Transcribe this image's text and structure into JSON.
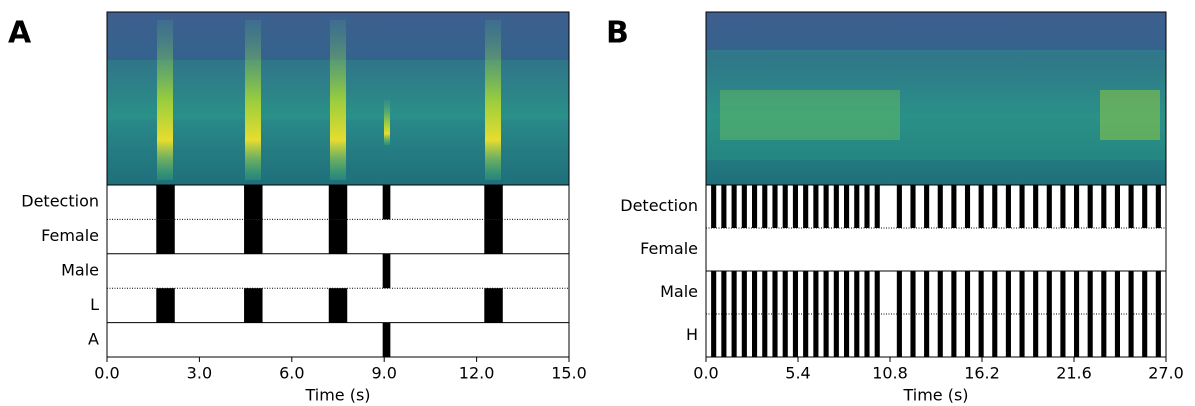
{
  "chart_data": [
    {
      "type": "event",
      "panel": "A",
      "xlabel": "Time (s)",
      "xlim": [
        0,
        15
      ],
      "xticks": [
        {
          "value": 0,
          "label": "0.0"
        },
        {
          "value": 3,
          "label": "3.0"
        },
        {
          "value": 6,
          "label": "6.0"
        },
        {
          "value": 9,
          "label": "9.0"
        },
        {
          "value": 12,
          "label": "12.0"
        },
        {
          "value": 15,
          "label": "15.0"
        }
      ],
      "color": "#000000",
      "tracks": [
        {
          "name": "Detection",
          "segments": [
            [
              1.6,
              2.2
            ],
            [
              4.45,
              5.05
            ],
            [
              7.2,
              7.8
            ],
            [
              8.95,
              9.2
            ],
            [
              12.25,
              12.85
            ]
          ]
        },
        {
          "name": "Female",
          "segments": [
            [
              1.6,
              2.2
            ],
            [
              4.45,
              5.05
            ],
            [
              7.2,
              7.8
            ],
            [
              12.25,
              12.85
            ]
          ]
        },
        {
          "name": "Male",
          "segments": [
            [
              8.95,
              9.2
            ]
          ]
        },
        {
          "name": "L",
          "segments": [
            [
              1.6,
              2.2
            ],
            [
              4.45,
              5.05
            ],
            [
              7.2,
              7.8
            ],
            [
              12.25,
              12.85
            ]
          ]
        },
        {
          "name": "A",
          "segments": [
            [
              8.95,
              9.2
            ]
          ]
        }
      ]
    },
    {
      "type": "event",
      "panel": "B",
      "xlabel": "Time (s)",
      "xlim": [
        0,
        27
      ],
      "xticks": [
        {
          "value": 0,
          "label": "0.0"
        },
        {
          "value": 5.4,
          "label": "5.4"
        },
        {
          "value": 10.8,
          "label": "10.8"
        },
        {
          "value": 16.2,
          "label": "16.2"
        },
        {
          "value": 21.6,
          "label": "21.6"
        },
        {
          "value": 27,
          "label": "27.0"
        }
      ],
      "color": "#000000",
      "tracks": [
        {
          "name": "Detection",
          "segments": [
            [
              0.3,
              0.6
            ],
            [
              0.9,
              1.2
            ],
            [
              1.5,
              1.8
            ],
            [
              2.1,
              2.4
            ],
            [
              2.7,
              3.0
            ],
            [
              3.3,
              3.6
            ],
            [
              3.9,
              4.2
            ],
            [
              4.5,
              4.8
            ],
            [
              5.1,
              5.4
            ],
            [
              5.7,
              6.0
            ],
            [
              6.3,
              6.6
            ],
            [
              6.9,
              7.2
            ],
            [
              7.5,
              7.8
            ],
            [
              8.1,
              8.4
            ],
            [
              8.7,
              9.0
            ],
            [
              9.3,
              9.6
            ],
            [
              9.9,
              10.2
            ],
            [
              11.2,
              11.5
            ],
            [
              12.0,
              12.3
            ],
            [
              12.8,
              13.1
            ],
            [
              13.6,
              13.9
            ],
            [
              14.4,
              14.7
            ],
            [
              15.2,
              15.5
            ],
            [
              16.0,
              16.3
            ],
            [
              16.8,
              17.1
            ],
            [
              17.6,
              17.9
            ],
            [
              18.4,
              18.7
            ],
            [
              19.2,
              19.5
            ],
            [
              20.0,
              20.3
            ],
            [
              20.8,
              21.1
            ],
            [
              21.6,
              21.9
            ],
            [
              22.4,
              22.7
            ],
            [
              23.2,
              23.5
            ],
            [
              24.0,
              24.3
            ],
            [
              24.8,
              25.1
            ],
            [
              25.6,
              25.9
            ],
            [
              26.4,
              26.7
            ]
          ]
        },
        {
          "name": "Female",
          "segments": []
        },
        {
          "name": "Male",
          "segments": [
            [
              0.3,
              0.6
            ],
            [
              0.9,
              1.2
            ],
            [
              1.5,
              1.8
            ],
            [
              2.1,
              2.4
            ],
            [
              2.7,
              3.0
            ],
            [
              3.3,
              3.6
            ],
            [
              3.9,
              4.2
            ],
            [
              4.5,
              4.8
            ],
            [
              5.1,
              5.4
            ],
            [
              5.7,
              6.0
            ],
            [
              6.3,
              6.6
            ],
            [
              6.9,
              7.2
            ],
            [
              7.5,
              7.8
            ],
            [
              8.1,
              8.4
            ],
            [
              8.7,
              9.0
            ],
            [
              9.3,
              9.6
            ],
            [
              9.9,
              10.2
            ],
            [
              11.2,
              11.5
            ],
            [
              12.0,
              12.3
            ],
            [
              12.8,
              13.1
            ],
            [
              13.6,
              13.9
            ],
            [
              14.4,
              14.7
            ],
            [
              15.2,
              15.5
            ],
            [
              16.0,
              16.3
            ],
            [
              16.8,
              17.1
            ],
            [
              17.6,
              17.9
            ],
            [
              18.4,
              18.7
            ],
            [
              19.2,
              19.5
            ],
            [
              20.0,
              20.3
            ],
            [
              20.8,
              21.1
            ],
            [
              21.6,
              21.9
            ],
            [
              22.4,
              22.7
            ],
            [
              23.2,
              23.5
            ],
            [
              24.0,
              24.3
            ],
            [
              24.8,
              25.1
            ],
            [
              25.6,
              25.9
            ],
            [
              26.4,
              26.7
            ]
          ]
        },
        {
          "name": "H",
          "segments": [
            [
              0.3,
              0.6
            ],
            [
              0.9,
              1.2
            ],
            [
              1.5,
              1.8
            ],
            [
              2.1,
              2.4
            ],
            [
              2.7,
              3.0
            ],
            [
              3.3,
              3.6
            ],
            [
              3.9,
              4.2
            ],
            [
              4.5,
              4.8
            ],
            [
              5.1,
              5.4
            ],
            [
              5.7,
              6.0
            ],
            [
              6.3,
              6.6
            ],
            [
              6.9,
              7.2
            ],
            [
              7.5,
              7.8
            ],
            [
              8.1,
              8.4
            ],
            [
              8.7,
              9.0
            ],
            [
              9.3,
              9.6
            ],
            [
              9.9,
              10.2
            ],
            [
              11.2,
              11.5
            ],
            [
              12.0,
              12.3
            ],
            [
              12.8,
              13.1
            ],
            [
              13.6,
              13.9
            ],
            [
              14.4,
              14.7
            ],
            [
              15.2,
              15.5
            ],
            [
              16.0,
              16.3
            ],
            [
              16.8,
              17.1
            ],
            [
              17.6,
              17.9
            ],
            [
              18.4,
              18.7
            ],
            [
              19.2,
              19.5
            ],
            [
              20.0,
              20.3
            ],
            [
              20.8,
              21.1
            ],
            [
              21.6,
              21.9
            ],
            [
              22.4,
              22.7
            ],
            [
              23.2,
              23.5
            ],
            [
              24.0,
              24.3
            ],
            [
              24.8,
              25.1
            ],
            [
              25.6,
              25.9
            ],
            [
              26.4,
              26.7
            ]
          ]
        }
      ]
    }
  ]
}
